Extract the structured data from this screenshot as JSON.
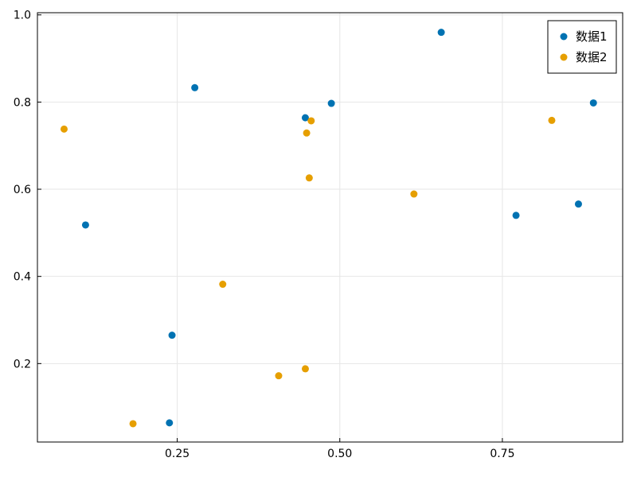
{
  "chart_data": {
    "type": "scatter",
    "title": "",
    "xlabel": "",
    "ylabel": "",
    "xlim": [
      0.035,
      0.935
    ],
    "ylim": [
      0.02,
      1.005
    ],
    "x_ticks": [
      0.25,
      0.5,
      0.75
    ],
    "x_tick_labels": [
      "0.25",
      "0.50",
      "0.75"
    ],
    "y_ticks": [
      0.2,
      0.4,
      0.6,
      0.8,
      1.0
    ],
    "y_tick_labels": [
      "0.2",
      "0.4",
      "0.6",
      "0.8",
      "1.0"
    ],
    "grid": true,
    "legend_position": "top-right",
    "series": [
      {
        "name": "数据1",
        "color": "#0072b2",
        "points": [
          {
            "x": 0.277,
            "y": 0.833
          },
          {
            "x": 0.447,
            "y": 0.764
          },
          {
            "x": 0.487,
            "y": 0.797
          },
          {
            "x": 0.656,
            "y": 0.96
          },
          {
            "x": 0.89,
            "y": 0.798
          },
          {
            "x": 0.109,
            "y": 0.518
          },
          {
            "x": 0.771,
            "y": 0.54
          },
          {
            "x": 0.867,
            "y": 0.566
          },
          {
            "x": 0.242,
            "y": 0.265
          },
          {
            "x": 0.238,
            "y": 0.064
          }
        ]
      },
      {
        "name": "数据2",
        "color": "#e69f00",
        "points": [
          {
            "x": 0.076,
            "y": 0.738
          },
          {
            "x": 0.456,
            "y": 0.757
          },
          {
            "x": 0.449,
            "y": 0.729
          },
          {
            "x": 0.826,
            "y": 0.758
          },
          {
            "x": 0.453,
            "y": 0.626
          },
          {
            "x": 0.614,
            "y": 0.589
          },
          {
            "x": 0.32,
            "y": 0.382
          },
          {
            "x": 0.406,
            "y": 0.172
          },
          {
            "x": 0.447,
            "y": 0.188
          },
          {
            "x": 0.182,
            "y": 0.062
          }
        ]
      }
    ]
  }
}
